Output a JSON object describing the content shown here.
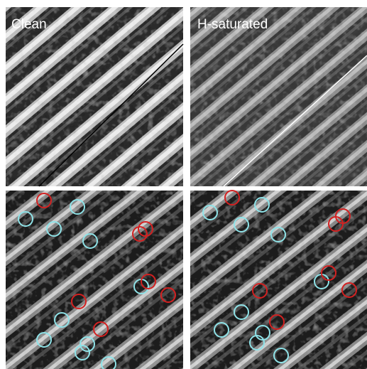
{
  "panels": [
    {
      "label": "Clean"
    },
    {
      "label": "H-saturated"
    }
  ]
}
